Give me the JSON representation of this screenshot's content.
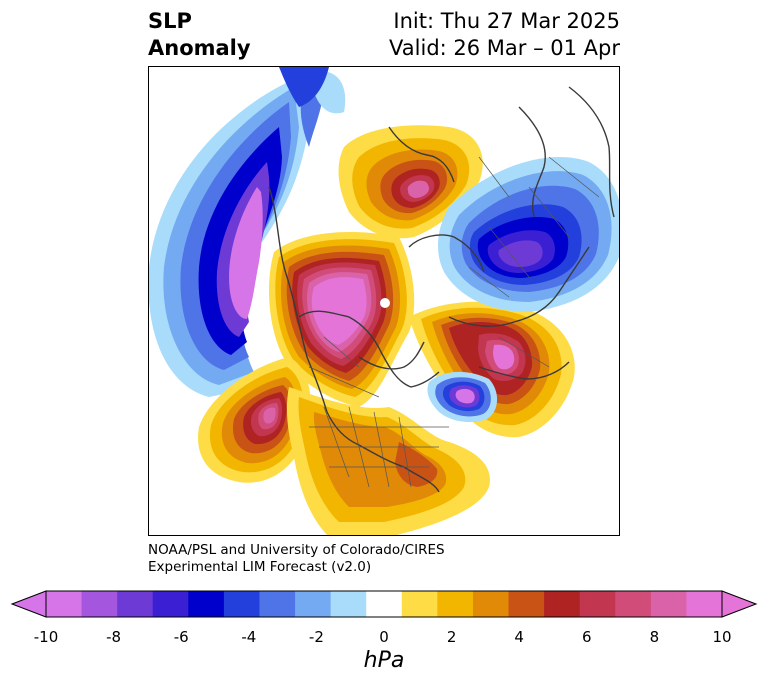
{
  "title": {
    "left_line1": "SLP",
    "left_line2": "Anomaly",
    "right_line1": "Init: Thu 27 Mar 2025",
    "right_line2": "Valid: 26 Mar – 01 Apr"
  },
  "credit": {
    "line1": "NOAA/PSL and University of Colorado/CIRES",
    "line2": "Experimental LIM Forecast (v2.0)"
  },
  "colorbar": {
    "units": "hPa",
    "tick_labels": [
      "-10",
      "-8",
      "-6",
      "-4",
      "-2",
      "0",
      "2",
      "4",
      "6",
      "8",
      "10"
    ],
    "levels": [
      -10,
      -9,
      -8,
      -7,
      -6,
      -5,
      -4,
      -3,
      -2,
      -1,
      1,
      2,
      3,
      4,
      5,
      6,
      7,
      8,
      9,
      10
    ],
    "colors": [
      "#d575e8",
      "#a457de",
      "#6d3ad6",
      "#3a1fd3",
      "#0000cc",
      "#2340dc",
      "#4e74e8",
      "#74aaf2",
      "#a9dcfa",
      "#ffffff",
      "#fddc45",
      "#f2b600",
      "#e08a08",
      "#c95315",
      "#b02323",
      "#c2364f",
      "#d24c7a",
      "#d962a8",
      "#e474d8"
    ],
    "under_color": "#d575e8",
    "over_color": "#e474d8"
  },
  "map_data": {
    "projection": "north-polar-stereographic",
    "field": "sea level pressure anomaly",
    "anomaly_centers": [
      {
        "region": "northeast-pacific",
        "sign": "negative",
        "peak_hpa": -10
      },
      {
        "region": "canada-arctic",
        "sign": "positive",
        "peak_hpa": 10
      },
      {
        "region": "gulf-of-alaska-south",
        "sign": "positive",
        "peak_hpa": 9
      },
      {
        "region": "scandinavia-barents",
        "sign": "positive",
        "peak_hpa": 8
      },
      {
        "region": "north-atlantic-europe",
        "sign": "positive",
        "peak_hpa": 10
      },
      {
        "region": "labrador-sea",
        "sign": "negative",
        "peak_hpa": -8
      },
      {
        "region": "east-siberia-okhotsk",
        "sign": "negative",
        "peak_hpa": -7
      },
      {
        "region": "eastern-united-states",
        "sign": "positive",
        "peak_hpa": 5
      }
    ]
  }
}
